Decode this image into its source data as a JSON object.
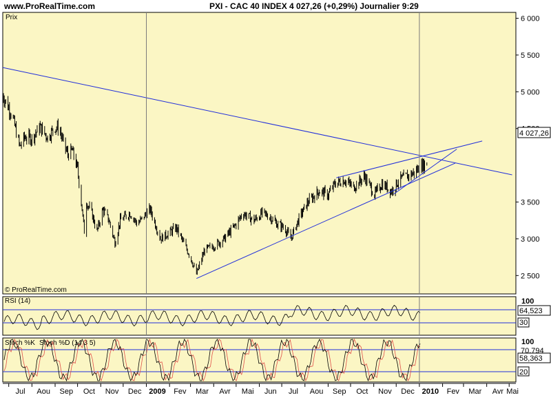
{
  "header": {
    "site": "www.ProRealTime.com",
    "title": "PXI - CAC 40 INDEX    4 027,26 (+0,29%)    Journalier  9:29"
  },
  "colors": {
    "panel_bg": "#FBF6C4",
    "trendline": "#1F2DDB",
    "price": "#000000",
    "stoch_d": "#E0504A"
  },
  "chart_data": [
    {
      "type": "bar",
      "title": "PXI - CAC 40 INDEX",
      "panel_label": "Prix",
      "watermark": "© ProRealTime.com",
      "last_value_label": "4 027,26",
      "y_ticks": [
        "6 000",
        "5 500",
        "5 000",
        "4 500",
        "3 500",
        "3 000",
        "2 500"
      ],
      "y_tick_values": [
        6000,
        5500,
        5000,
        4500,
        3500,
        3000,
        2500
      ],
      "ylim": [
        2250,
        6080
      ],
      "x_ticks": [
        "Jul",
        "Aou",
        "Sep",
        "Oct",
        "Nov",
        "Dec",
        "2009",
        "Fev",
        "Mar",
        "Avr",
        "Mai",
        "Jun",
        "Jul",
        "Aou",
        "Sep",
        "Oct",
        "Nov",
        "Dec",
        "2010",
        "Fev",
        "Mar",
        "Avr",
        "Mai"
      ],
      "x_bold": [
        "2009",
        "2010"
      ],
      "series_anchors": [
        [
          "2008-06-23",
          4950
        ],
        [
          "2008-07-05",
          4700
        ],
        [
          "2008-07-16",
          4250
        ],
        [
          "2008-07-22",
          4380
        ],
        [
          "2008-08-01",
          4370
        ],
        [
          "2008-08-12",
          4520
        ],
        [
          "2008-08-22",
          4380
        ],
        [
          "2008-09-01",
          4520
        ],
        [
          "2008-09-07",
          4500
        ],
        [
          "2008-09-12",
          4300
        ],
        [
          "2008-09-18",
          4150
        ],
        [
          "2008-09-24",
          4200
        ],
        [
          "2008-10-01",
          3950
        ],
        [
          "2008-10-06",
          3500
        ],
        [
          "2008-10-10",
          3100
        ],
        [
          "2008-10-13",
          3500
        ],
        [
          "2008-10-20",
          3350
        ],
        [
          "2008-10-27",
          3100
        ],
        [
          "2008-11-04",
          3400
        ],
        [
          "2008-11-12",
          3250
        ],
        [
          "2008-11-20",
          2950
        ],
        [
          "2008-11-27",
          3250
        ],
        [
          "2008-12-10",
          3350
        ],
        [
          "2008-12-20",
          3200
        ],
        [
          "2009-01-06",
          3400
        ],
        [
          "2009-01-20",
          3000
        ],
        [
          "2009-02-10",
          3150
        ],
        [
          "2009-03-01",
          2750
        ],
        [
          "2009-03-09",
          2520
        ],
        [
          "2009-03-20",
          2850
        ],
        [
          "2009-04-01",
          2900
        ],
        [
          "2009-04-15",
          3000
        ],
        [
          "2009-05-01",
          3200
        ],
        [
          "2009-05-10",
          3350
        ],
        [
          "2009-05-25",
          3250
        ],
        [
          "2009-06-05",
          3350
        ],
        [
          "2009-06-15",
          3300
        ],
        [
          "2009-06-25",
          3200
        ],
        [
          "2009-07-05",
          3150
        ],
        [
          "2009-07-13",
          3000
        ],
        [
          "2009-07-25",
          3300
        ],
        [
          "2009-08-05",
          3500
        ],
        [
          "2009-08-20",
          3650
        ],
        [
          "2009-09-01",
          3600
        ],
        [
          "2009-09-10",
          3750
        ],
        [
          "2009-09-23",
          3800
        ],
        [
          "2009-10-05",
          3700
        ],
        [
          "2009-10-20",
          3850
        ],
        [
          "2009-11-02",
          3600
        ],
        [
          "2009-11-12",
          3750
        ],
        [
          "2009-11-25",
          3650
        ],
        [
          "2009-12-05",
          3800
        ],
        [
          "2009-12-15",
          3850
        ],
        [
          "2009-12-25",
          3900
        ],
        [
          "2010-01-05",
          4000
        ],
        [
          "2010-01-11",
          4027
        ]
      ],
      "trendlines": [
        {
          "from": [
            "2008-06-23",
            5330
          ],
          "to": [
            "2010-05-05",
            3870
          ]
        },
        {
          "from": [
            "2009-03-09",
            2460
          ],
          "to": [
            "2010-02-18",
            4030
          ]
        },
        {
          "from": [
            "2009-09-12",
            3830
          ],
          "to": [
            "2010-03-26",
            4330
          ]
        },
        {
          "from": [
            "2009-11-28",
            3610
          ],
          "to": [
            "2010-02-20",
            4220
          ]
        }
      ]
    },
    {
      "type": "line",
      "title": "RSI (14)",
      "y_ticks": [
        "100"
      ],
      "level_labels": [
        "70",
        "30"
      ],
      "levels": [
        70,
        30
      ],
      "ylim": [
        0,
        100
      ],
      "last_value_label": "64,523"
    },
    {
      "type": "line",
      "title": "Stoch %K",
      "title2": "Stoch %D (14 3 5)",
      "y_ticks": [
        "100"
      ],
      "level_labels": [
        "80",
        "20"
      ],
      "levels": [
        80,
        20
      ],
      "ylim": [
        0,
        100
      ],
      "last_value_label": "58,363",
      "last_value_label_2": "70,794"
    }
  ]
}
